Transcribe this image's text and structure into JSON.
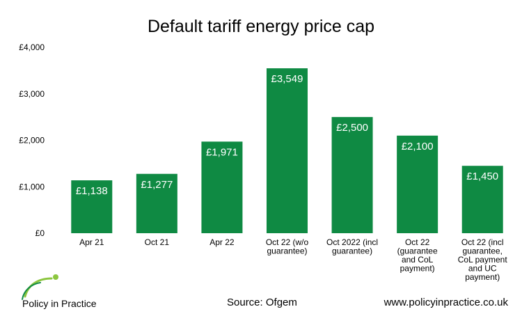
{
  "chart_data": {
    "type": "bar",
    "title": "Default tariff energy price cap",
    "categories": [
      [
        "Apr 21"
      ],
      [
        "Oct 21"
      ],
      [
        "Apr 22"
      ],
      [
        "Oct 22 (w/o",
        "guarantee)"
      ],
      [
        "Oct 2022 (incl",
        "guarantee)"
      ],
      [
        "Oct 22",
        "(guarantee",
        "and CoL",
        "payment)"
      ],
      [
        "Oct 22 (incl",
        "guarantee,",
        "CoL payment",
        "and UC",
        "payment)"
      ]
    ],
    "values": [
      1138,
      1277,
      1971,
      3549,
      2500,
      2100,
      1450
    ],
    "data_labels": [
      "£1,138",
      "£1,277",
      "£1,971",
      "£3,549",
      "£2,500",
      "£2,100",
      "£1,450"
    ],
    "ylim": [
      0,
      4000
    ],
    "yticks": [
      0,
      1000,
      2000,
      3000,
      4000
    ],
    "ytick_labels": [
      "£0",
      "£1,000",
      "£2,000",
      "£3,000",
      "£4,000"
    ],
    "bar_color": "#0f8a43",
    "grid": false,
    "legend": "none"
  },
  "footer": {
    "source": "Source: Ofgem",
    "url": "www.policyinpractice.co.uk",
    "logo_text": "Policy in Practice"
  },
  "colors": {
    "logo_accent": "#8cc63f"
  }
}
